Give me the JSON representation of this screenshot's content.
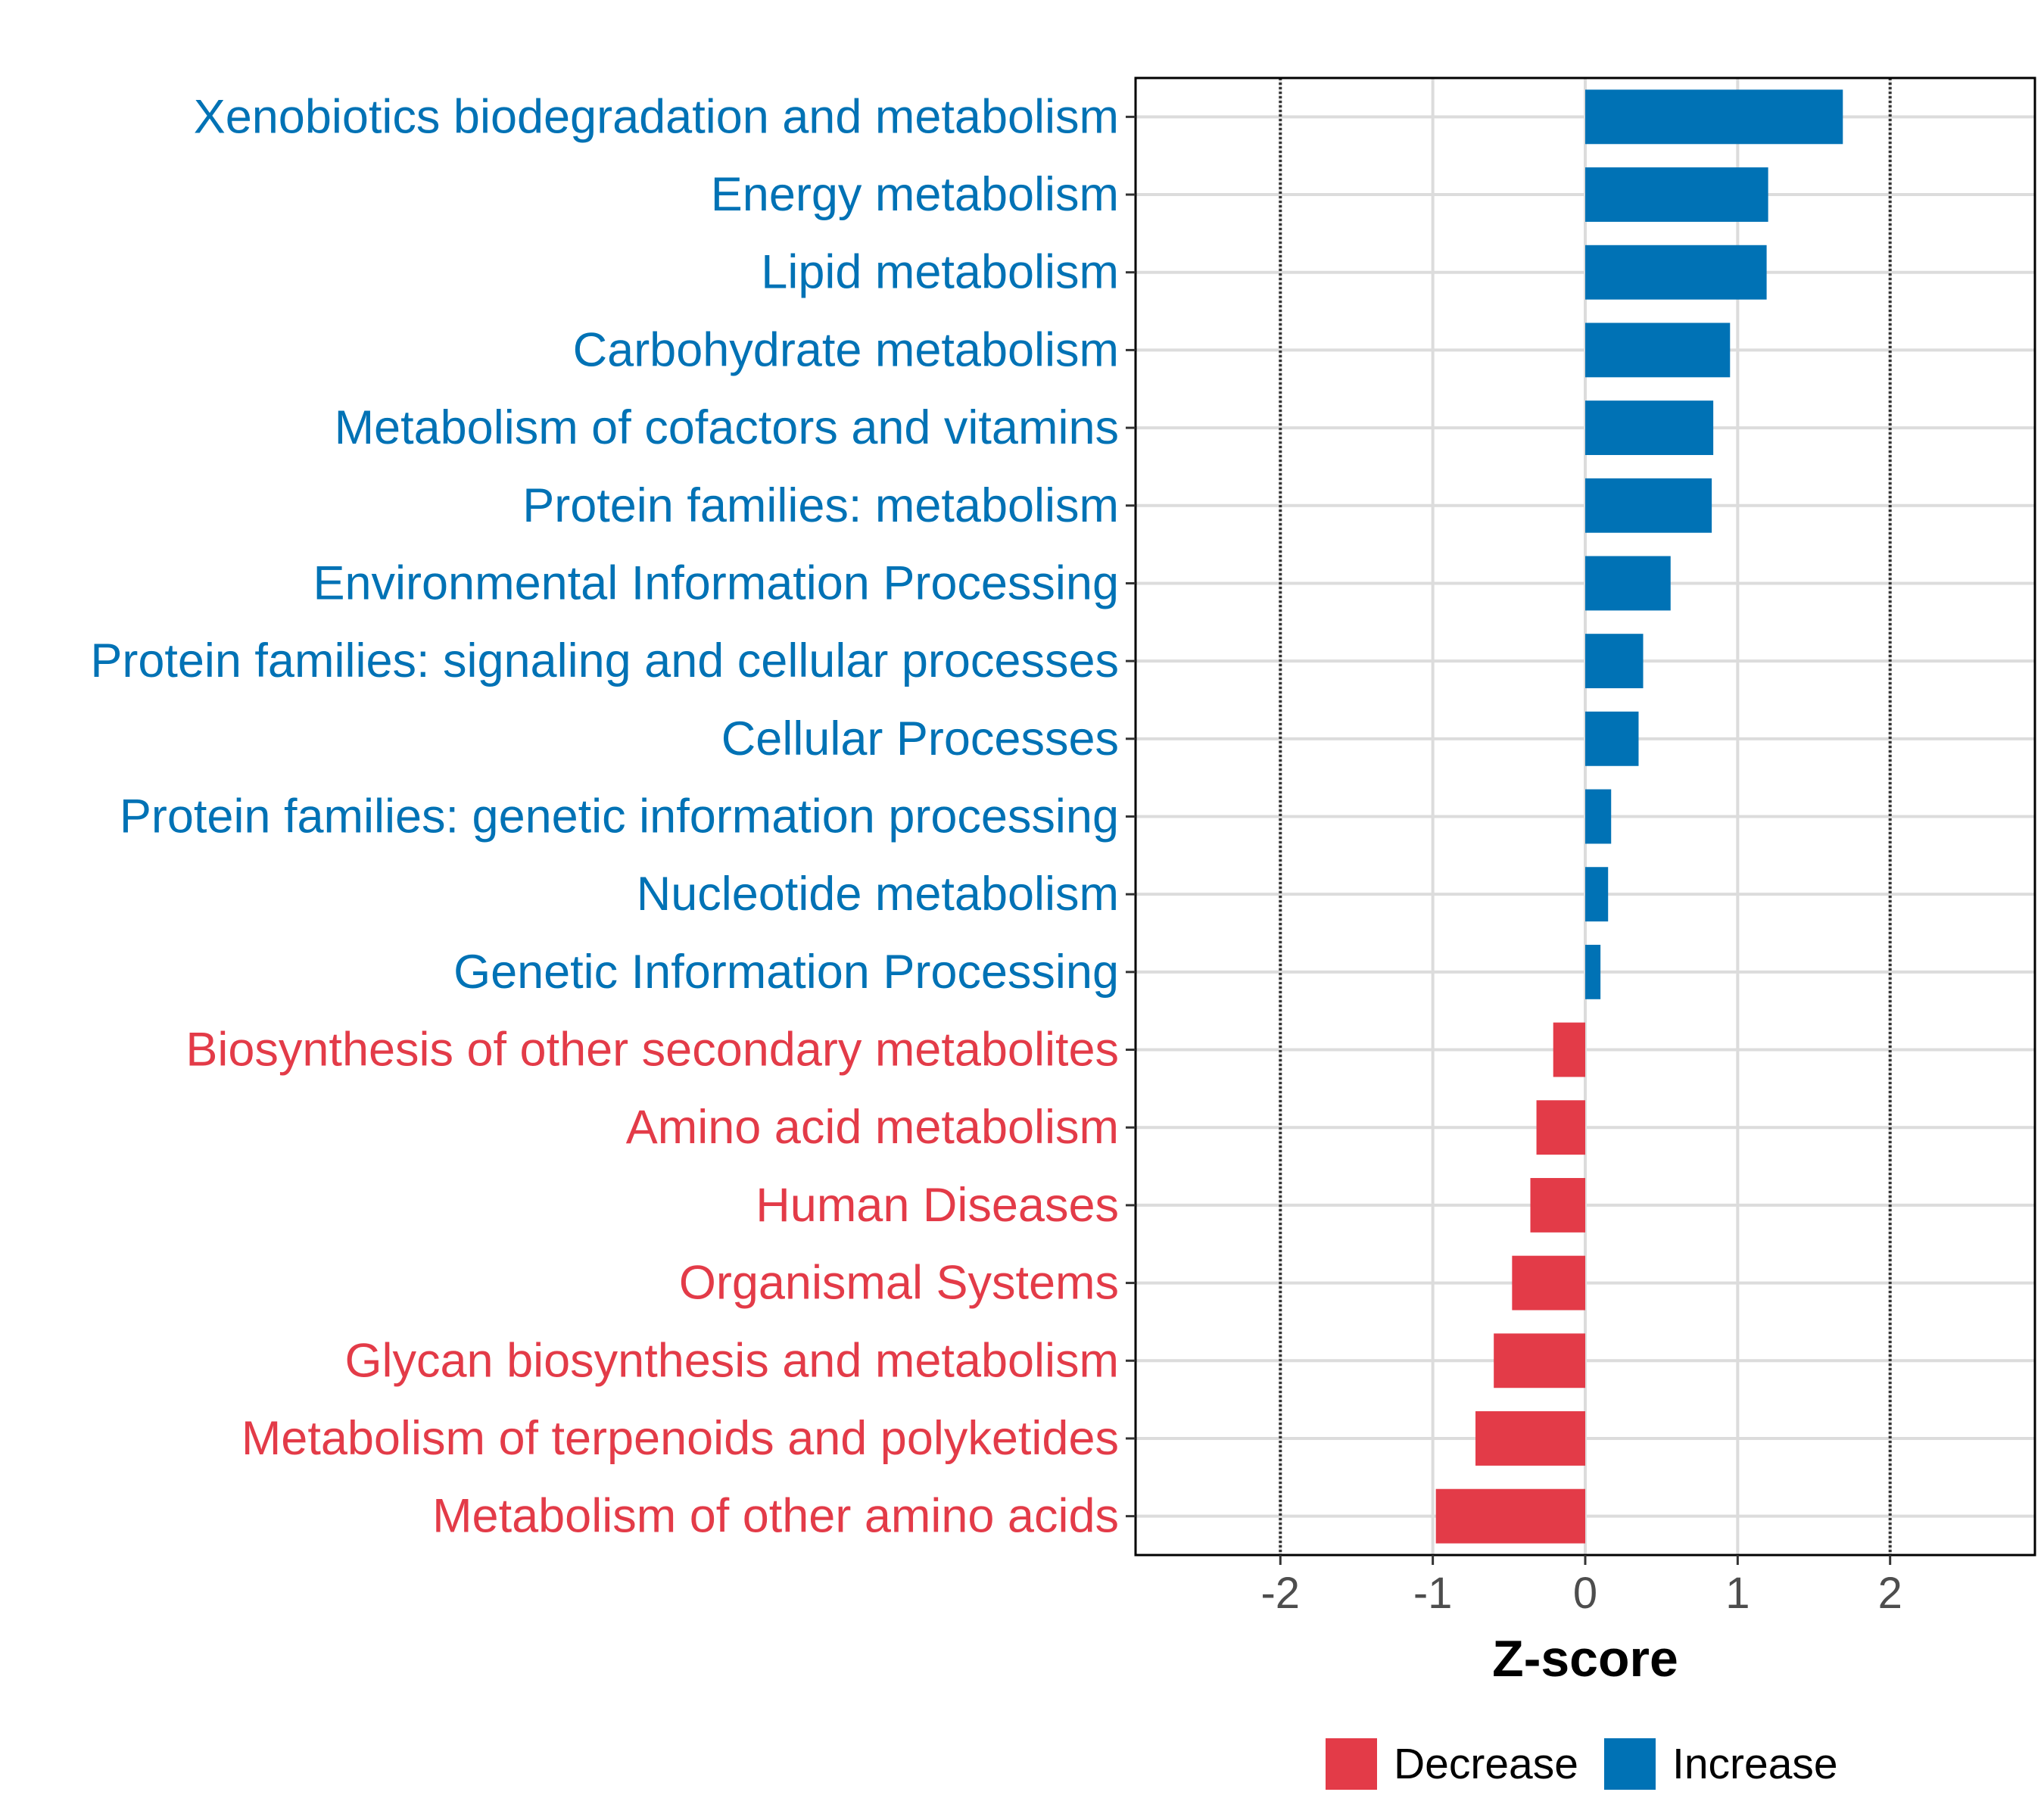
{
  "chart_data": {
    "type": "bar",
    "orientation": "horizontal",
    "title": "",
    "xlabel": "Z-score",
    "ylabel": "",
    "xlim": [
      -2.95,
      2.95
    ],
    "xticks": [
      -2,
      -1,
      0,
      1,
      2
    ],
    "xtick_labels": [
      "-2",
      "-1",
      "0",
      "1",
      "2"
    ],
    "reference_lines": [
      -2,
      2
    ],
    "grid": true,
    "colors": {
      "Increase": "#0072B5",
      "Decrease": "#E33B48"
    },
    "categories": [
      "Xenobiotics biodegradation and metabolism",
      "Energy metabolism",
      "Lipid metabolism",
      "Carbohydrate metabolism",
      "Metabolism of cofactors and vitamins",
      "Protein families: metabolism",
      "Environmental Information Processing",
      "Protein families: signaling and cellular processes",
      "Cellular Processes",
      "Protein families: genetic information processing",
      "Nucleotide metabolism",
      "Genetic Information Processing",
      "Biosynthesis of other secondary metabolites",
      "Amino acid metabolism",
      "Human Diseases",
      "Organismal Systems",
      "Glycan biosynthesis and metabolism",
      "Metabolism of terpenoids and polyketides",
      "Metabolism of other amino acids"
    ],
    "values": [
      1.69,
      1.2,
      1.19,
      0.95,
      0.84,
      0.83,
      0.56,
      0.38,
      0.35,
      0.17,
      0.15,
      0.1,
      -0.21,
      -0.32,
      -0.36,
      -0.48,
      -0.6,
      -0.72,
      -0.98
    ],
    "groups": [
      "Increase",
      "Increase",
      "Increase",
      "Increase",
      "Increase",
      "Increase",
      "Increase",
      "Increase",
      "Increase",
      "Increase",
      "Increase",
      "Increase",
      "Decrease",
      "Decrease",
      "Decrease",
      "Decrease",
      "Decrease",
      "Decrease",
      "Decrease"
    ],
    "legend": {
      "position": "bottom",
      "entries": [
        {
          "label": "Decrease",
          "color": "#E33B48"
        },
        {
          "label": "Increase",
          "color": "#0072B5"
        }
      ]
    }
  }
}
